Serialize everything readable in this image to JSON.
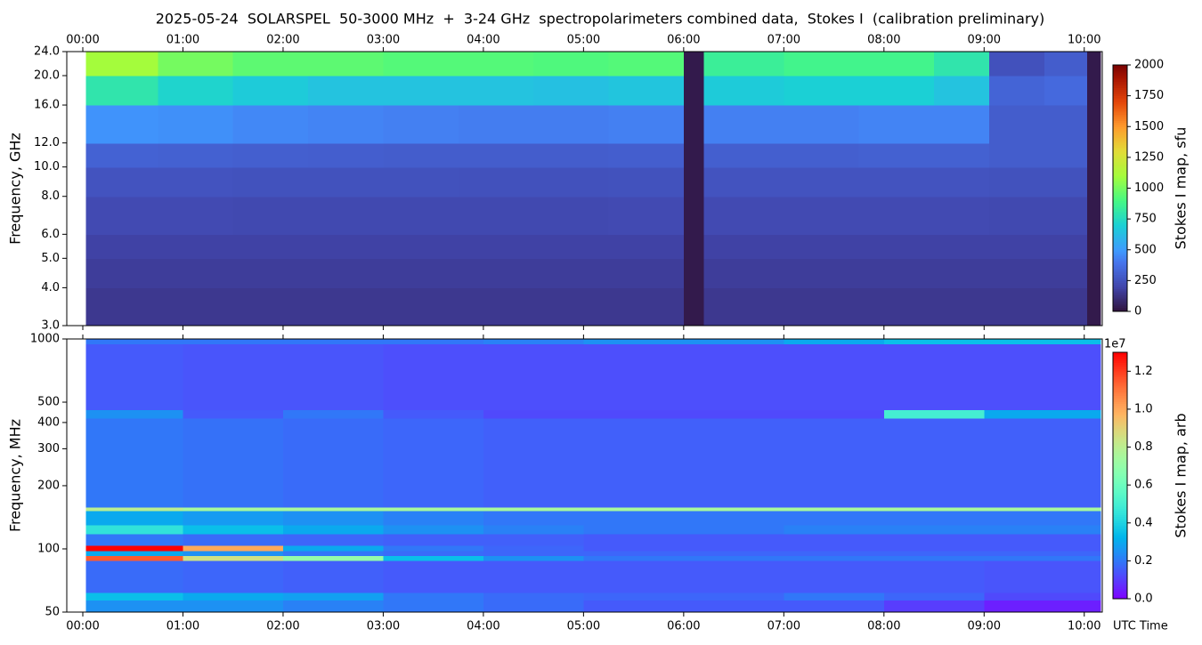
{
  "chart_data": [
    {
      "type": "heatmap",
      "title": "2025-05-24  SOLARSPEL  50-3000 MHz  +  3-24 GHz  spectropolarimeters combined data,  Stokes I  (calibration preliminary)",
      "ylabel": "Frequency, GHz",
      "xtick_side": "top",
      "log_y": true,
      "xlim": [
        -0.16,
        10.18
      ],
      "xticks": [
        {
          "value": 0,
          "label": "00:00"
        },
        {
          "value": 1,
          "label": "01:00"
        },
        {
          "value": 2,
          "label": "02:00"
        },
        {
          "value": 3,
          "label": "03:00"
        },
        {
          "value": 4,
          "label": "04:00"
        },
        {
          "value": 5,
          "label": "05:00"
        },
        {
          "value": 6,
          "label": "06:00"
        },
        {
          "value": 7,
          "label": "07:00"
        },
        {
          "value": 8,
          "label": "08:00"
        },
        {
          "value": 9,
          "label": "09:00"
        },
        {
          "value": 10,
          "label": "10:00"
        }
      ],
      "ylim": [
        3,
        24
      ],
      "yticks": [
        {
          "value": 3,
          "label": "3.0"
        },
        {
          "value": 4,
          "label": "4.0"
        },
        {
          "value": 5,
          "label": "5.0"
        },
        {
          "value": 6,
          "label": "6.0"
        },
        {
          "value": 8,
          "label": "8.0"
        },
        {
          "value": 10,
          "label": "10.0"
        },
        {
          "value": 12,
          "label": "12.0"
        },
        {
          "value": 16,
          "label": "16.0"
        },
        {
          "value": 20,
          "label": "20.0"
        },
        {
          "value": 24,
          "label": "24.0"
        }
      ],
      "x_edges": [
        0.03,
        0.75,
        1.5,
        2.25,
        3,
        3.75,
        4.5,
        5.25,
        6.0,
        6.2,
        7,
        7.75,
        8.5,
        9.05,
        9.6,
        10.03,
        10.16
      ],
      "y_edges": [
        3,
        4,
        5,
        6,
        8,
        10,
        12,
        16,
        20,
        24
      ],
      "values": [
        [
          150,
          150,
          150,
          150,
          150,
          150,
          150,
          150,
          30,
          150,
          150,
          150,
          150,
          150,
          150,
          30
        ],
        [
          170,
          170,
          170,
          170,
          170,
          170,
          170,
          170,
          30,
          170,
          170,
          170,
          170,
          170,
          170,
          30
        ],
        [
          190,
          190,
          190,
          190,
          190,
          190,
          190,
          190,
          30,
          190,
          190,
          190,
          190,
          190,
          190,
          30
        ],
        [
          220,
          220,
          215,
          215,
          215,
          215,
          215,
          220,
          30,
          220,
          220,
          220,
          220,
          215,
          215,
          30
        ],
        [
          260,
          260,
          255,
          255,
          255,
          250,
          250,
          255,
          30,
          260,
          260,
          260,
          260,
          255,
          255,
          30
        ],
        [
          320,
          315,
          310,
          305,
          300,
          300,
          300,
          305,
          30,
          310,
          310,
          315,
          315,
          300,
          300,
          30
        ],
        [
          480,
          470,
          450,
          440,
          430,
          420,
          420,
          430,
          30,
          430,
          430,
          440,
          440,
          300,
          300,
          30
        ],
        [
          800,
          720,
          680,
          650,
          650,
          650,
          640,
          660,
          30,
          680,
          700,
          700,
          650,
          330,
          350,
          30
        ],
        [
          1100,
          1000,
          950,
          950,
          930,
          930,
          920,
          930,
          30,
          850,
          880,
          880,
          800,
          250,
          300,
          30
        ]
      ],
      "colormap": "turbo",
      "clim": [
        0,
        2000
      ],
      "cbar_ticks": [
        0,
        250,
        500,
        750,
        1000,
        1250,
        1500,
        1750,
        2000
      ],
      "cbar_label": "Stokes I map, sfu"
    },
    {
      "type": "heatmap",
      "ylabel": "Frequency, MHz",
      "xlabel": "UTC Time",
      "xtick_side": "bottom",
      "log_y": true,
      "xlim": [
        -0.16,
        10.18
      ],
      "xticks": [
        {
          "value": 0,
          "label": "00:00"
        },
        {
          "value": 1,
          "label": "01:00"
        },
        {
          "value": 2,
          "label": "02:00"
        },
        {
          "value": 3,
          "label": "03:00"
        },
        {
          "value": 4,
          "label": "04:00"
        },
        {
          "value": 5,
          "label": "05:00"
        },
        {
          "value": 6,
          "label": "06:00"
        },
        {
          "value": 7,
          "label": "07:00"
        },
        {
          "value": 8,
          "label": "08:00"
        },
        {
          "value": 9,
          "label": "09:00"
        },
        {
          "value": 10,
          "label": "10:00"
        }
      ],
      "ylim": [
        50,
        1000
      ],
      "yticks": [
        50,
        100,
        200,
        300,
        400,
        500,
        1000
      ],
      "x_edges": [
        0.03,
        1,
        2,
        3,
        4,
        5,
        6,
        7,
        8,
        9,
        10.16
      ],
      "y_edges": [
        50,
        57,
        62,
        88,
        93,
        98,
        104,
        118,
        130,
        152,
        158,
        420,
        460,
        950,
        1000
      ],
      "values": [
        [
          0.25,
          0.25,
          0.22,
          0.2,
          0.18,
          0.15,
          0.15,
          0.15,
          0.1,
          0.05
        ],
        [
          0.35,
          0.3,
          0.28,
          0.2,
          0.18,
          0.17,
          0.17,
          0.2,
          0.17,
          0.12
        ],
        [
          0.18,
          0.17,
          0.16,
          0.15,
          0.15,
          0.15,
          0.15,
          0.15,
          0.15,
          0.14
        ],
        [
          1.15,
          0.85,
          0.7,
          0.35,
          0.25,
          0.2,
          0.2,
          0.2,
          0.2,
          0.2
        ],
        [
          0.3,
          0.25,
          0.2,
          0.18,
          0.17,
          0.17,
          0.17,
          0.17,
          0.17,
          0.17
        ],
        [
          1.3,
          1.0,
          0.3,
          0.2,
          0.17,
          0.15,
          0.15,
          0.15,
          0.15,
          0.15
        ],
        [
          0.2,
          0.18,
          0.17,
          0.16,
          0.16,
          0.15,
          0.15,
          0.15,
          0.15,
          0.15
        ],
        [
          0.45,
          0.35,
          0.3,
          0.25,
          0.22,
          0.2,
          0.2,
          0.22,
          0.22,
          0.22
        ],
        [
          0.3,
          0.27,
          0.25,
          0.22,
          0.2,
          0.2,
          0.2,
          0.2,
          0.2,
          0.2
        ],
        [
          0.8,
          0.75,
          0.75,
          0.75,
          0.75,
          0.75,
          0.75,
          0.75,
          0.75,
          0.75
        ],
        [
          0.2,
          0.19,
          0.18,
          0.17,
          0.16,
          0.16,
          0.16,
          0.16,
          0.16,
          0.16
        ],
        [
          0.25,
          0.15,
          0.2,
          0.15,
          0.12,
          0.12,
          0.12,
          0.12,
          0.5,
          0.3
        ],
        [
          0.15,
          0.14,
          0.14,
          0.13,
          0.13,
          0.13,
          0.13,
          0.13,
          0.13,
          0.13
        ],
        [
          0.2,
          0.2,
          0.2,
          0.2,
          0.22,
          0.25,
          0.25,
          0.3,
          0.35,
          0.35
        ]
      ],
      "colormap": "rainbow",
      "clim": [
        0,
        1.3
      ],
      "cbar_ticks": [
        {
          "value": 0,
          "label": "0.0"
        },
        {
          "value": 0.2,
          "label": "0.2"
        },
        {
          "value": 0.4,
          "label": "0.4"
        },
        {
          "value": 0.6,
          "label": "0.6"
        },
        {
          "value": 0.8,
          "label": "0.8"
        },
        {
          "value": 1.0,
          "label": "1.0"
        },
        {
          "value": 1.2,
          "label": "1.2"
        }
      ],
      "cbar_offset_text": "1e7",
      "cbar_label": "Stokes I map, arb"
    }
  ]
}
